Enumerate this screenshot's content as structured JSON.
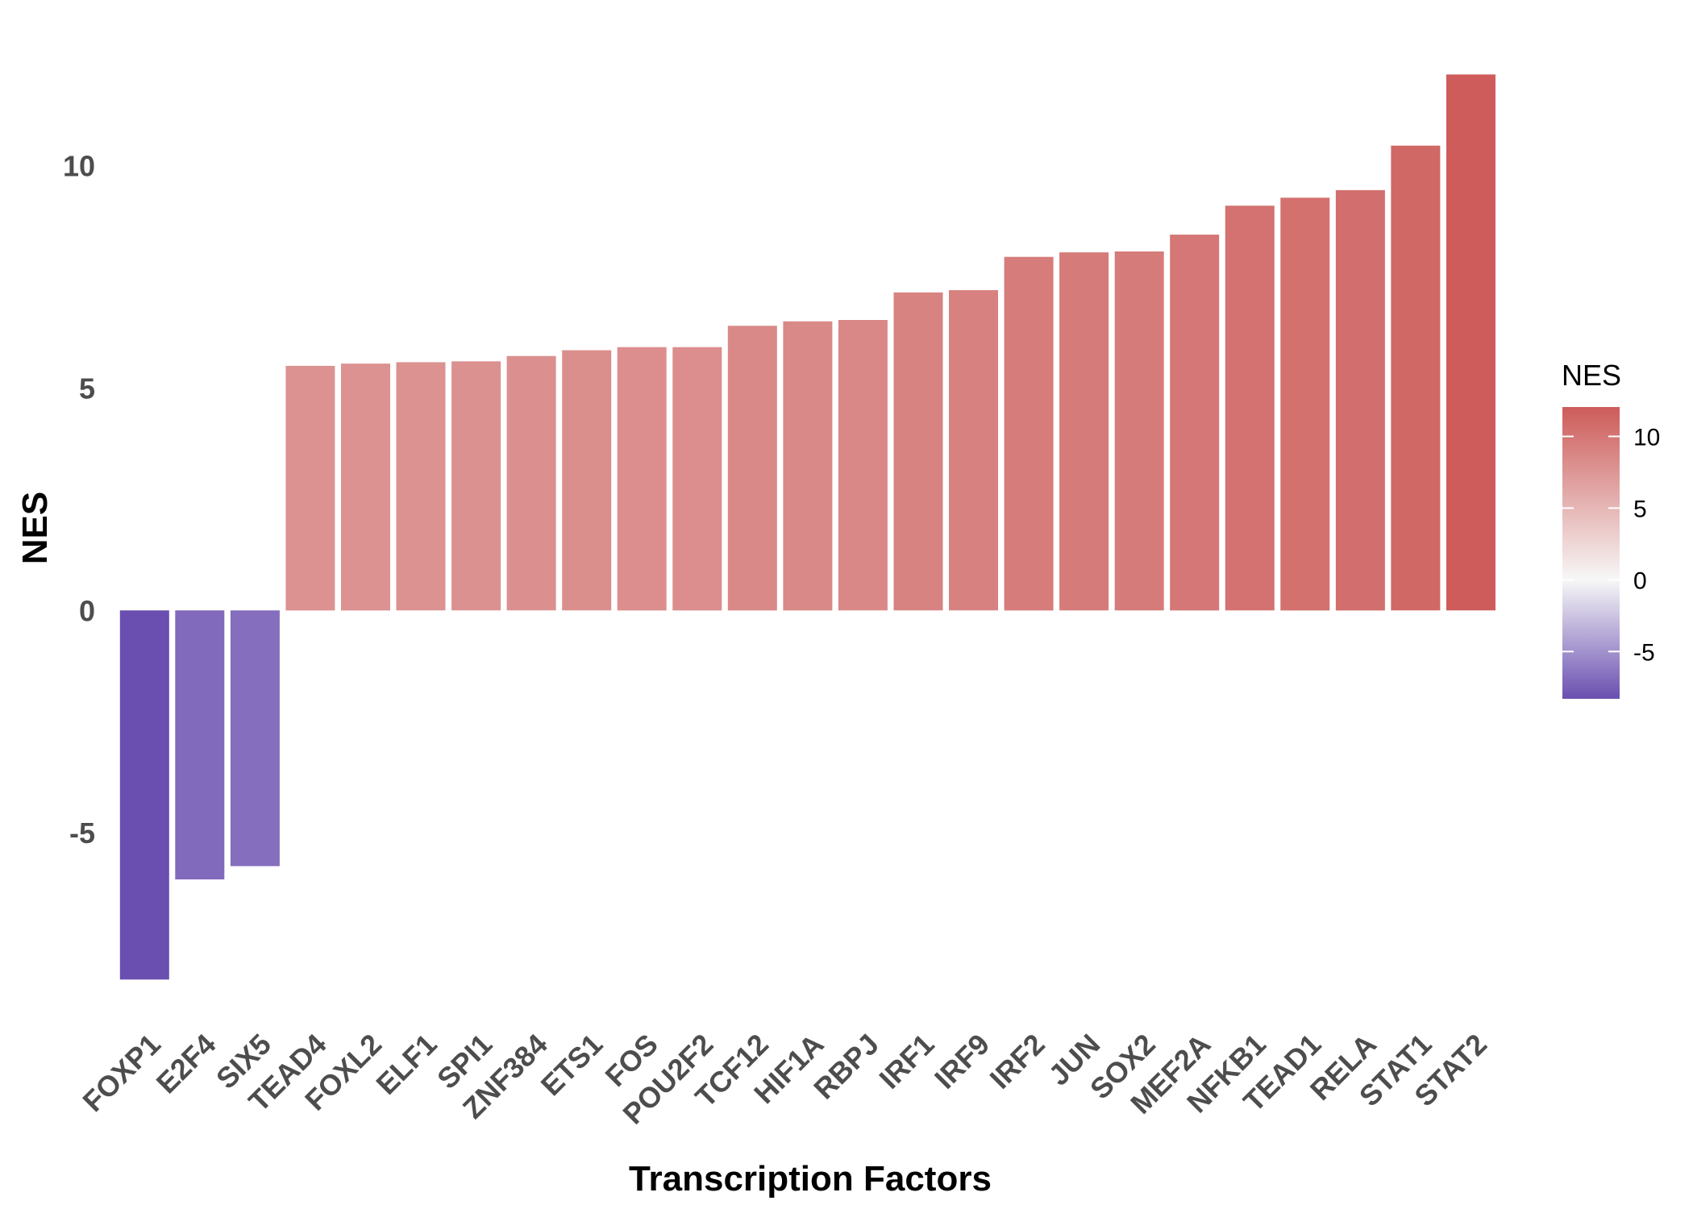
{
  "chart_data": {
    "type": "bar",
    "xlabel": "Transcription Factors",
    "ylabel": "NES",
    "ylim": [
      -9.2,
      13.0
    ],
    "yticks": [
      -5,
      0,
      5,
      10
    ],
    "ytick_labels": [
      "-5",
      "0",
      "5",
      "10"
    ],
    "grid": false,
    "categories": [
      "FOXP1",
      "E2F4",
      "SIX5",
      "TEAD4",
      "FOXL2",
      "ELF1",
      "SPI1",
      "ZNF384",
      "ETS1",
      "FOS",
      "POU2F2",
      "TCF12",
      "HIF1A",
      "RBPJ",
      "IRF1",
      "IRF9",
      "IRF2",
      "JUN",
      "SOX2",
      "MEF2A",
      "NFKB1",
      "TEAD1",
      "RELA",
      "STAT1",
      "STAT2"
    ],
    "values": [
      -8.3,
      -6.05,
      -5.75,
      5.5,
      5.55,
      5.58,
      5.6,
      5.72,
      5.85,
      5.92,
      5.92,
      6.4,
      6.5,
      6.53,
      7.15,
      7.2,
      7.95,
      8.05,
      8.07,
      8.45,
      9.1,
      9.28,
      9.45,
      10.45,
      12.05
    ],
    "legend": {
      "title": "NES",
      "position": "right",
      "ticks": [
        10,
        5,
        0,
        -5
      ],
      "tick_labels": [
        "10",
        "5",
        "0",
        "-5"
      ],
      "range": [
        -8.3,
        12.05
      ],
      "low_color": "#6a4fb0",
      "mid_color": "#f7f7f7",
      "high_color": "#cd5c5a"
    }
  }
}
